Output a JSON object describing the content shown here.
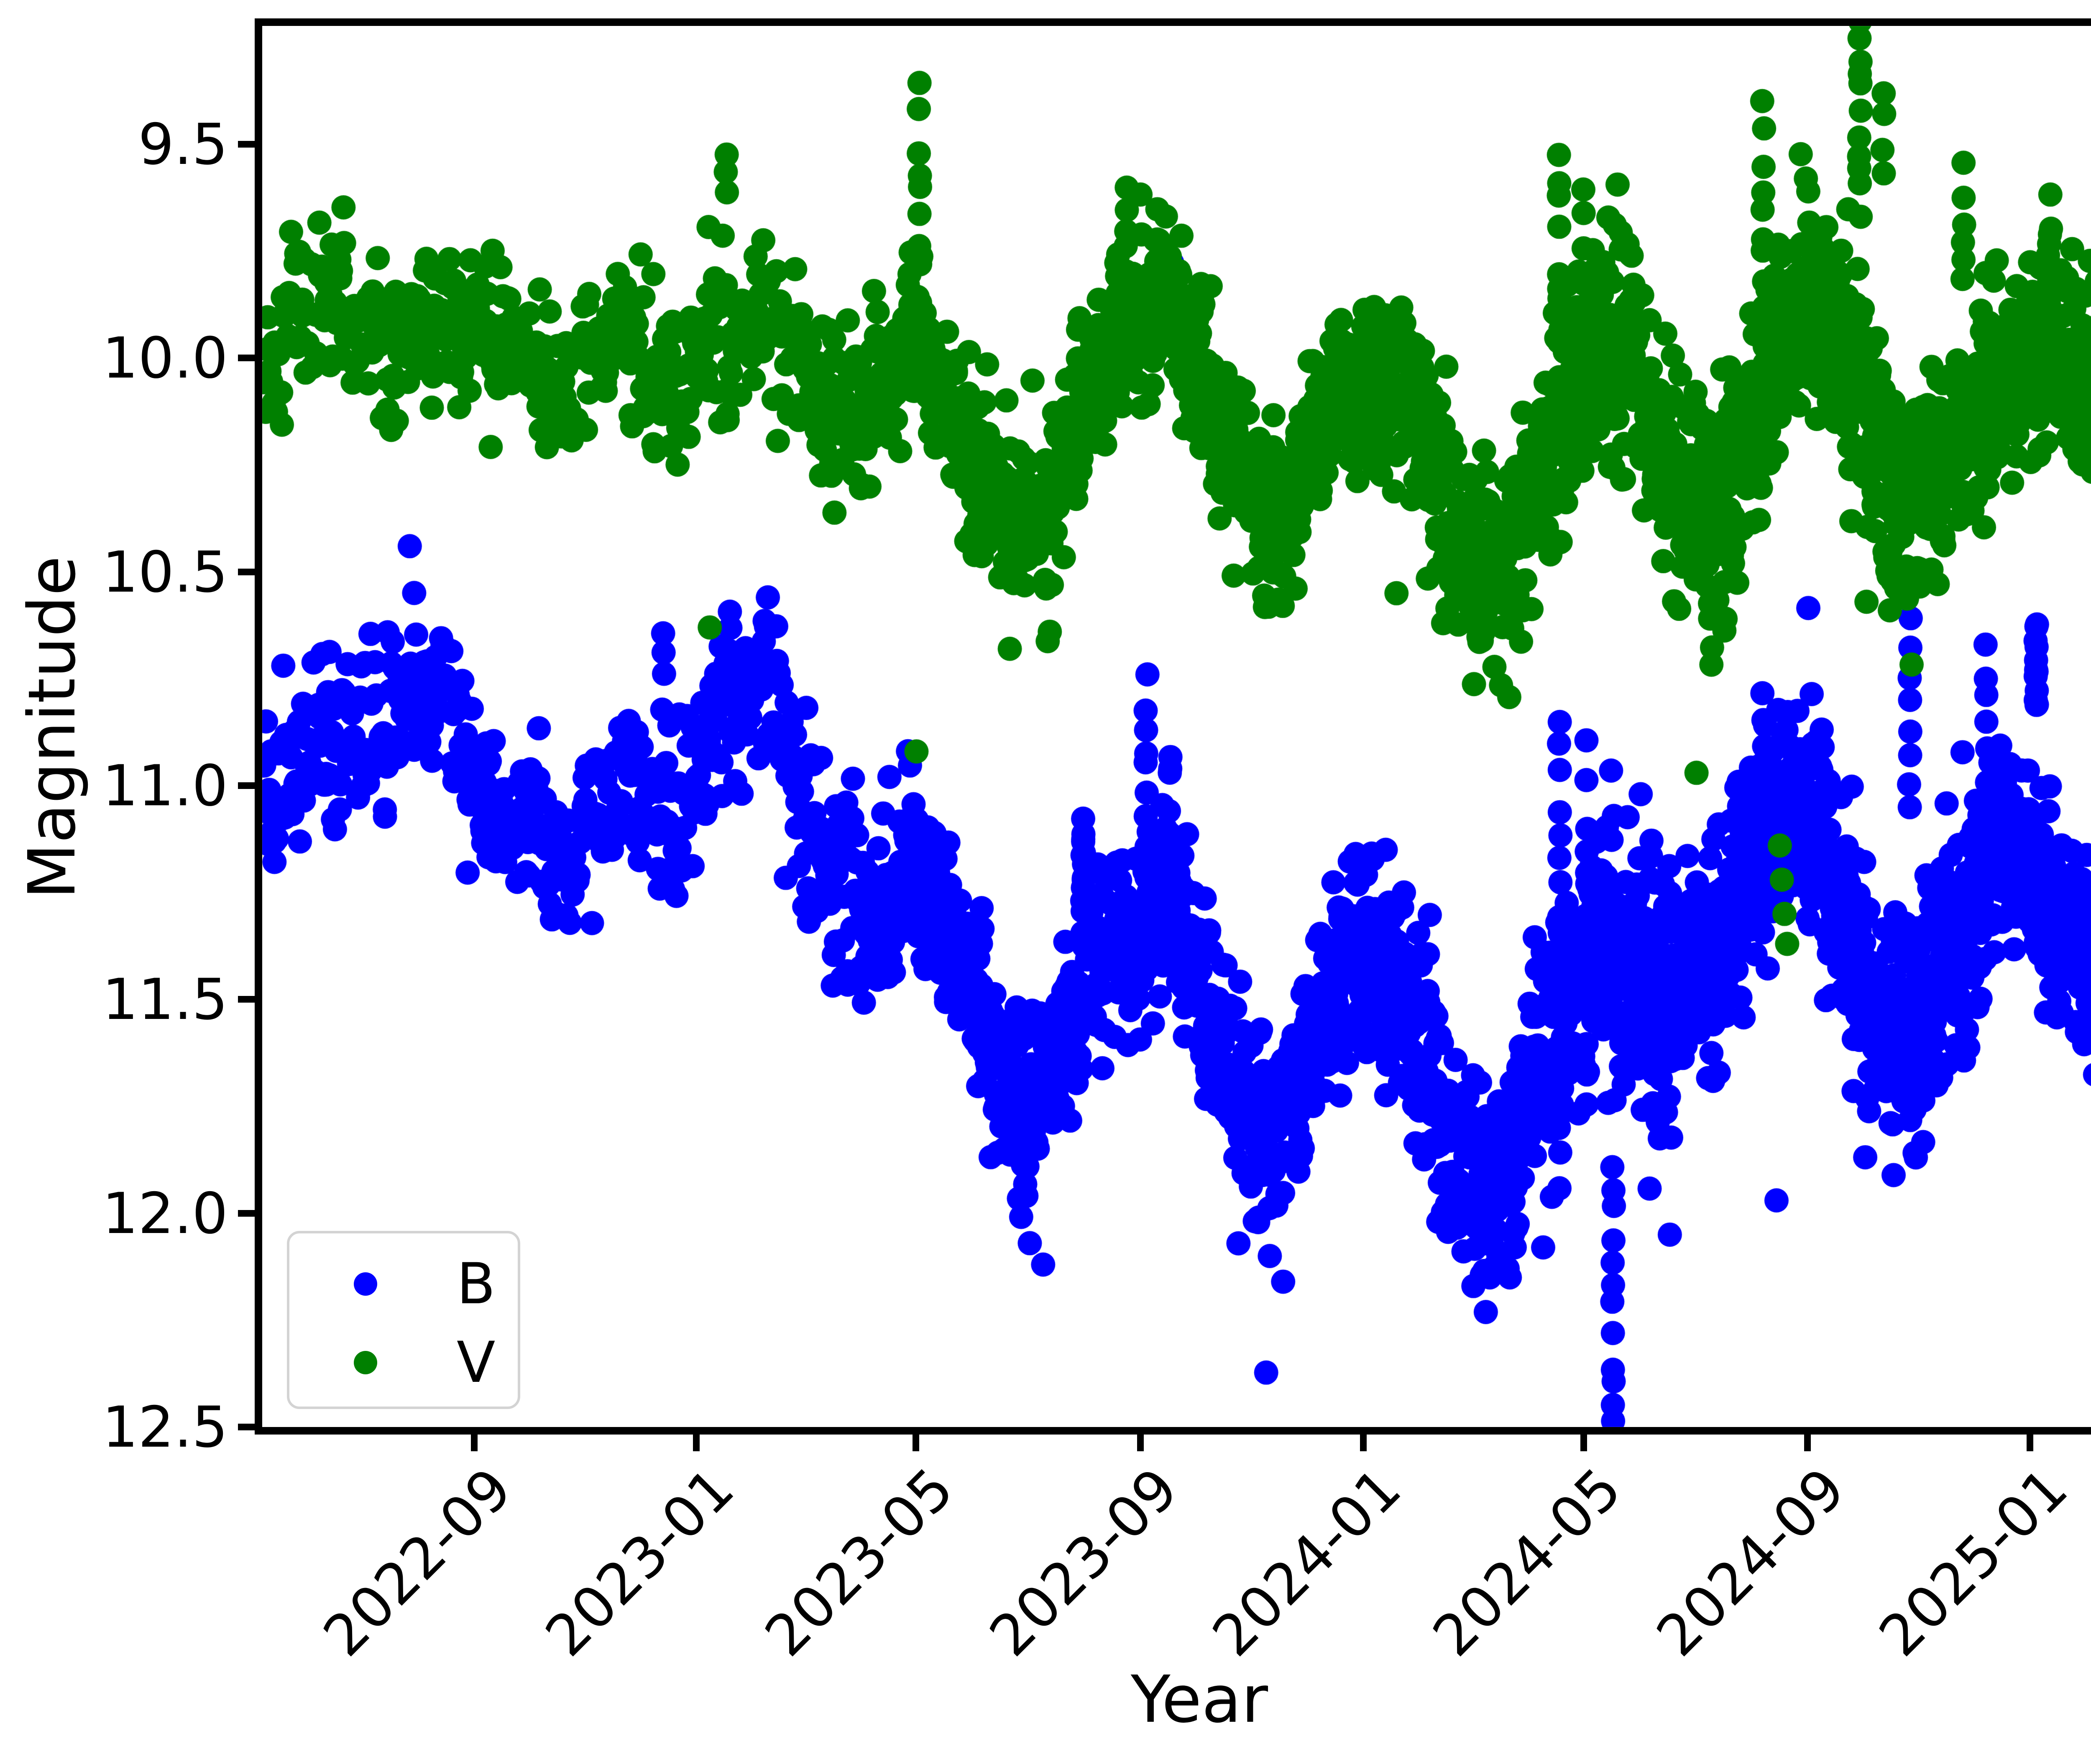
{
  "chart_data": {
    "type": "scatter",
    "title": "",
    "xlabel": "Year",
    "ylabel": "Magnitude",
    "grid": false,
    "y_inverted_magnitude_axis": true,
    "x_range_decimal_year": [
      2022.35,
      2025.16
    ],
    "y_range_mag": [
      9.223,
      12.5
    ],
    "x_ticks": [
      {
        "t": 2022.6667,
        "label": "2022-09"
      },
      {
        "t": 2023.0,
        "label": "2023-01"
      },
      {
        "t": 2023.3288,
        "label": "2023-05"
      },
      {
        "t": 2023.6658,
        "label": "2023-09"
      },
      {
        "t": 2024.0,
        "label": "2024-01"
      },
      {
        "t": 2024.3306,
        "label": "2024-05"
      },
      {
        "t": 2024.6667,
        "label": "2024-09"
      },
      {
        "t": 2025.0,
        "label": "2025-01"
      }
    ],
    "y_ticks": [
      {
        "mag": 9.5,
        "label": "9.5"
      },
      {
        "mag": 10.0,
        "label": "10.0"
      },
      {
        "mag": 10.5,
        "label": "10.5"
      },
      {
        "mag": 11.0,
        "label": "11.0"
      },
      {
        "mag": 11.5,
        "label": "11.5"
      },
      {
        "mag": 12.0,
        "label": "12.0"
      },
      {
        "mag": 12.5,
        "label": "12.5"
      }
    ],
    "legend": [
      {
        "label": "B",
        "color": "#0000ff"
      },
      {
        "label": "V",
        "color": "#008000"
      }
    ],
    "marker": {
      "radius_px": 29
    },
    "seed": 1337,
    "density_scale": 1.15,
    "series": [
      {
        "name": "B",
        "color": "#0000ff",
        "keyframes": [
          [
            2022.35,
            11.05,
            0.12,
            1.2
          ],
          [
            2022.45,
            10.94,
            0.11,
            1.2
          ],
          [
            2022.55,
            10.88,
            0.11,
            1.3
          ],
          [
            2022.62,
            10.82,
            0.1,
            1.4
          ],
          [
            2022.72,
            11.06,
            0.11,
            1.2
          ],
          [
            2022.8,
            11.17,
            0.09,
            1.2
          ],
          [
            2022.88,
            11.03,
            0.1,
            1.2
          ],
          [
            2022.95,
            11.1,
            0.11,
            1.3
          ],
          [
            2023.03,
            10.85,
            0.12,
            1.4
          ],
          [
            2023.1,
            10.82,
            0.11,
            1.2
          ],
          [
            2023.18,
            11.12,
            0.11,
            1.5
          ],
          [
            2023.26,
            11.26,
            0.11,
            1.8
          ],
          [
            2023.33,
            11.16,
            0.11,
            2.2
          ],
          [
            2023.4,
            11.42,
            0.11,
            2.2
          ],
          [
            2023.48,
            11.74,
            0.12,
            2.4
          ],
          [
            2023.54,
            11.68,
            0.12,
            2.4
          ],
          [
            2023.62,
            11.42,
            0.12,
            2.4
          ],
          [
            2023.7,
            11.32,
            0.13,
            2.6
          ],
          [
            2023.78,
            11.6,
            0.13,
            2.6
          ],
          [
            2023.86,
            11.85,
            0.12,
            2.6
          ],
          [
            2023.93,
            11.62,
            0.12,
            2.6
          ],
          [
            2024.0,
            11.38,
            0.12,
            2.8
          ],
          [
            2024.07,
            11.58,
            0.13,
            2.8
          ],
          [
            2024.15,
            11.9,
            0.13,
            3.0
          ],
          [
            2024.22,
            11.94,
            0.14,
            3.0
          ],
          [
            2024.3,
            11.55,
            0.16,
            3.2
          ],
          [
            2024.37,
            11.38,
            0.17,
            3.2
          ],
          [
            2024.45,
            11.6,
            0.16,
            3.2
          ],
          [
            2024.52,
            11.46,
            0.15,
            3.2
          ],
          [
            2024.6,
            11.16,
            0.15,
            3.4
          ],
          [
            2024.67,
            11.06,
            0.14,
            3.4
          ],
          [
            2024.74,
            11.38,
            0.15,
            3.4
          ],
          [
            2024.81,
            11.6,
            0.14,
            3.4
          ],
          [
            2024.88,
            11.34,
            0.13,
            3.4
          ],
          [
            2024.95,
            11.16,
            0.13,
            3.4
          ],
          [
            2025.02,
            11.24,
            0.12,
            3.4
          ],
          [
            2025.09,
            11.35,
            0.12,
            3.2
          ],
          [
            2025.16,
            11.42,
            0.12,
            3.0
          ]
        ],
        "streaks": [
          [
            2022.95,
            10.65,
            10.8,
            4
          ],
          [
            2023.05,
            10.6,
            10.78,
            5
          ],
          [
            2023.58,
            11.08,
            11.32,
            14
          ],
          [
            2023.675,
            10.74,
            11.38,
            12
          ],
          [
            2023.71,
            10.93,
            11.35,
            10
          ],
          [
            2023.715,
            9.78,
            9.9,
            4
          ],
          [
            2024.295,
            10.85,
            11.95,
            18
          ],
          [
            2024.335,
            10.92,
            11.75,
            12
          ],
          [
            2024.375,
            11.9,
            12.5,
            12
          ],
          [
            2024.6,
            10.78,
            11.35,
            10
          ],
          [
            2024.82,
            10.62,
            11.05,
            8
          ],
          [
            2024.935,
            10.66,
            11.1,
            8
          ],
          [
            2025.01,
            10.62,
            10.84,
            12
          ],
          [
            2025.14,
            10.7,
            11.0,
            6
          ]
        ],
        "outliers": [
          [
            2022.57,
            10.44
          ],
          [
            2023.5,
            12.07
          ],
          [
            2023.52,
            12.12
          ],
          [
            2023.86,
            12.1
          ],
          [
            2023.88,
            12.16
          ],
          [
            2024.13,
            12.03
          ],
          [
            2024.19,
            12.15
          ],
          [
            2024.22,
            12.15
          ],
          [
            2024.27,
            12.08
          ],
          [
            2024.46,
            12.05
          ],
          [
            2024.62,
            11.97
          ]
        ]
      },
      {
        "name": "V",
        "color": "#008000",
        "keyframes": [
          [
            2022.35,
            10.02,
            0.1,
            1.2
          ],
          [
            2022.45,
            9.93,
            0.09,
            1.2
          ],
          [
            2022.55,
            9.9,
            0.1,
            1.3
          ],
          [
            2022.62,
            9.85,
            0.09,
            1.4
          ],
          [
            2022.72,
            10.02,
            0.1,
            1.2
          ],
          [
            2022.8,
            10.11,
            0.08,
            1.2
          ],
          [
            2022.88,
            9.96,
            0.09,
            1.2
          ],
          [
            2022.95,
            10.06,
            0.1,
            1.3
          ],
          [
            2023.03,
            9.87,
            0.11,
            1.4
          ],
          [
            2023.1,
            9.84,
            0.1,
            1.2
          ],
          [
            2023.18,
            10.08,
            0.1,
            1.5
          ],
          [
            2023.26,
            10.1,
            0.1,
            1.8
          ],
          [
            2023.33,
            9.98,
            0.1,
            2.2
          ],
          [
            2023.4,
            10.17,
            0.1,
            2.2
          ],
          [
            2023.48,
            10.33,
            0.1,
            2.4
          ],
          [
            2023.54,
            10.28,
            0.1,
            2.4
          ],
          [
            2023.62,
            10.0,
            0.1,
            2.4
          ],
          [
            2023.7,
            9.9,
            0.11,
            2.6
          ],
          [
            2023.78,
            10.18,
            0.11,
            2.6
          ],
          [
            2023.86,
            10.36,
            0.1,
            2.6
          ],
          [
            2023.93,
            10.12,
            0.1,
            2.6
          ],
          [
            2024.0,
            9.98,
            0.1,
            2.8
          ],
          [
            2024.07,
            10.12,
            0.11,
            2.8
          ],
          [
            2024.15,
            10.38,
            0.11,
            3.0
          ],
          [
            2024.22,
            10.43,
            0.12,
            3.0
          ],
          [
            2024.3,
            10.12,
            0.13,
            3.2
          ],
          [
            2024.37,
            9.94,
            0.13,
            3.2
          ],
          [
            2024.45,
            10.2,
            0.13,
            3.2
          ],
          [
            2024.52,
            10.34,
            0.13,
            3.2
          ],
          [
            2024.6,
            10.02,
            0.14,
            3.4
          ],
          [
            2024.67,
            9.88,
            0.13,
            3.4
          ],
          [
            2024.74,
            10.08,
            0.14,
            3.4
          ],
          [
            2024.81,
            10.3,
            0.13,
            3.4
          ],
          [
            2024.88,
            10.22,
            0.12,
            3.4
          ],
          [
            2024.95,
            10.05,
            0.12,
            3.4
          ],
          [
            2025.02,
            9.99,
            0.11,
            3.4
          ],
          [
            2025.09,
            10.12,
            0.11,
            3.2
          ],
          [
            2025.16,
            10.18,
            0.11,
            3.0
          ]
        ],
        "streaks": [
          [
            2023.045,
            9.49,
            9.62,
            3
          ],
          [
            2023.335,
            9.37,
            10.02,
            12
          ],
          [
            2023.645,
            9.6,
            10.05,
            10
          ],
          [
            2023.69,
            9.68,
            9.95,
            6
          ],
          [
            2024.295,
            9.53,
            10.15,
            12
          ],
          [
            2024.33,
            9.62,
            10.05,
            8
          ],
          [
            2024.6,
            9.4,
            9.95,
            9
          ],
          [
            2024.745,
            9.2,
            9.65,
            11
          ],
          [
            2024.78,
            9.36,
            9.55,
            4
          ],
          [
            2024.9,
            9.55,
            9.85,
            6
          ],
          [
            2025.03,
            9.62,
            9.85,
            5
          ]
        ],
        "outliers": [
          [
            2023.02,
            10.63
          ],
          [
            2023.33,
            10.92
          ],
          [
            2023.47,
            10.68
          ],
          [
            2023.53,
            10.64
          ],
          [
            2024.05,
            10.55
          ],
          [
            2024.12,
            10.62
          ],
          [
            2024.5,
            10.97
          ],
          [
            2024.625,
            11.14
          ],
          [
            2024.628,
            11.22
          ],
          [
            2024.632,
            11.3
          ],
          [
            2024.636,
            11.37
          ],
          [
            2024.755,
            10.57
          ],
          [
            2024.79,
            10.59
          ]
        ]
      }
    ]
  }
}
